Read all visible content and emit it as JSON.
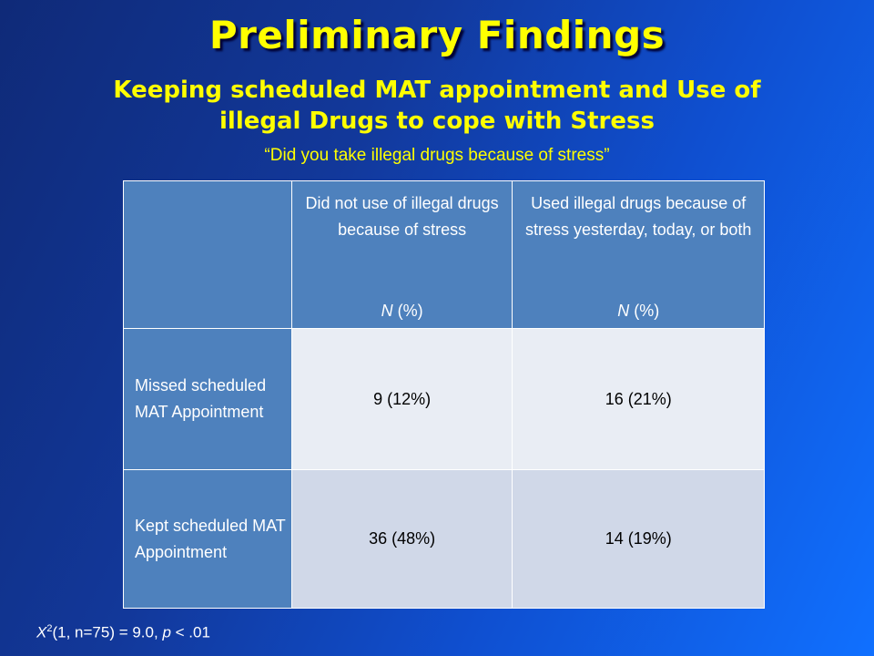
{
  "title": "Preliminary Findings",
  "subtitle_line1": "Keeping scheduled MAT appointment and Use of",
  "subtitle_line2": "illegal Drugs to cope with Stress",
  "question": "“Did you take illegal drugs because of stress”",
  "table": {
    "columns": [
      {
        "label": "",
        "unit": ""
      },
      {
        "label": "Did not use of illegal drugs because of stress",
        "unit_italic": "N",
        "unit_rest": " (%)"
      },
      {
        "label": "Used illegal drugs because of stress yesterday, today, or both",
        "unit_italic": "N",
        "unit_rest": " (%)"
      }
    ],
    "rows": [
      {
        "label": "Missed scheduled MAT Appointment",
        "cells": [
          "9 (12%)",
          "16 (21%)"
        ]
      },
      {
        "label": "Kept scheduled MAT Appointment",
        "cells": [
          "36 (48%)",
          "14 (19%)"
        ]
      }
    ]
  },
  "stat": {
    "symbol": "X",
    "sup": "2",
    "args": "(1, n=75) = 9.0, ",
    "p": "p",
    "tail": " < .01"
  },
  "colors": {
    "title": "#ffff00",
    "header_fill": "#4e81bd",
    "row1_fill": "#e9edf4",
    "row2_fill": "#d0d8e8"
  }
}
